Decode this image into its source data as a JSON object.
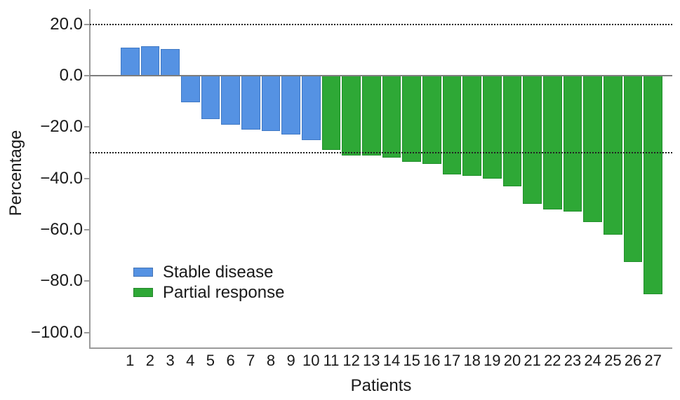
{
  "chart_data": {
    "type": "bar",
    "title": "",
    "xlabel": "Patients",
    "ylabel": "Percentage",
    "ylim": [
      -106,
      26
    ],
    "yticks": [
      20,
      0,
      -20,
      -40,
      -60,
      -80,
      -100
    ],
    "ytick_labels": [
      "20.0",
      "0.0",
      "−20.0",
      "−40.0",
      "−60.0",
      "−80.0",
      "−100.0"
    ],
    "reference_lines": {
      "upper": 20,
      "lower": -30,
      "style": "dotted"
    },
    "grid": false,
    "legend_position": "inside-bottom-left",
    "series": [
      {
        "name": "Stable disease",
        "color": "#5592E3",
        "border_color": "#4079c4"
      },
      {
        "name": "Partial response",
        "color": "#2EA836",
        "border_color": "#21902b"
      }
    ],
    "categories": [
      "1",
      "2",
      "3",
      "4",
      "5",
      "6",
      "7",
      "8",
      "9",
      "10",
      "11",
      "12",
      "13",
      "14",
      "15",
      "16",
      "17",
      "18",
      "19",
      "20",
      "21",
      "22",
      "23",
      "24",
      "25",
      "26",
      "27"
    ],
    "bars": [
      {
        "patient": "1",
        "value": 11,
        "response": "Stable disease"
      },
      {
        "patient": "2",
        "value": 11.5,
        "response": "Stable disease"
      },
      {
        "patient": "3",
        "value": 10.5,
        "response": "Stable disease"
      },
      {
        "patient": "4",
        "value": -10.5,
        "response": "Stable disease"
      },
      {
        "patient": "5",
        "value": -17,
        "response": "Stable disease"
      },
      {
        "patient": "6",
        "value": -19,
        "response": "Stable disease"
      },
      {
        "patient": "7",
        "value": -21,
        "response": "Stable disease"
      },
      {
        "patient": "8",
        "value": -21.5,
        "response": "Stable disease"
      },
      {
        "patient": "9",
        "value": -23,
        "response": "Stable disease"
      },
      {
        "patient": "10",
        "value": -25,
        "response": "Stable disease"
      },
      {
        "patient": "11",
        "value": -29,
        "response": "Partial response"
      },
      {
        "patient": "12",
        "value": -31,
        "response": "Partial response"
      },
      {
        "patient": "13",
        "value": -31,
        "response": "Partial response"
      },
      {
        "patient": "14",
        "value": -32,
        "response": "Partial response"
      },
      {
        "patient": "15",
        "value": -33.5,
        "response": "Partial response"
      },
      {
        "patient": "16",
        "value": -34.5,
        "response": "Partial response"
      },
      {
        "patient": "17",
        "value": -38.5,
        "response": "Partial response"
      },
      {
        "patient": "18",
        "value": -39,
        "response": "Partial response"
      },
      {
        "patient": "19",
        "value": -40,
        "response": "Partial response"
      },
      {
        "patient": "20",
        "value": -43,
        "response": "Partial response"
      },
      {
        "patient": "21",
        "value": -50,
        "response": "Partial response"
      },
      {
        "patient": "22",
        "value": -52,
        "response": "Partial response"
      },
      {
        "patient": "23",
        "value": -53,
        "response": "Partial response"
      },
      {
        "patient": "24",
        "value": -57,
        "response": "Partial response"
      },
      {
        "patient": "25",
        "value": -62,
        "response": "Partial response"
      },
      {
        "patient": "26",
        "value": -72.5,
        "response": "Partial response"
      },
      {
        "patient": "27",
        "value": -85,
        "response": "Partial response"
      }
    ]
  }
}
